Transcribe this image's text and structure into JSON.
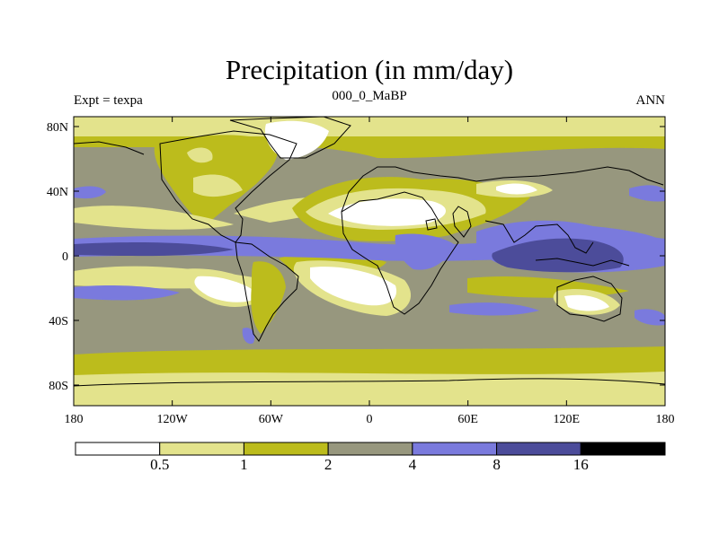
{
  "title": "Precipitation (in mm/day)",
  "left_label": "Expt = texpa",
  "center_label": "000_0_MaBP",
  "right_label": "ANN",
  "lat_ticks": [
    "80N",
    "40N",
    "0",
    "40S",
    "80S"
  ],
  "lon_ticks": [
    "180",
    "120W",
    "60W",
    "0",
    "60E",
    "120E",
    "180"
  ],
  "legend": {
    "colors": [
      "#ffffff",
      "#e3e38c",
      "#bcbc1c",
      "#97977e",
      "#7a7add",
      "#4c4c9a",
      "#000000"
    ],
    "labels": [
      "0.5",
      "1",
      "2",
      "4",
      "8",
      "16"
    ]
  }
}
